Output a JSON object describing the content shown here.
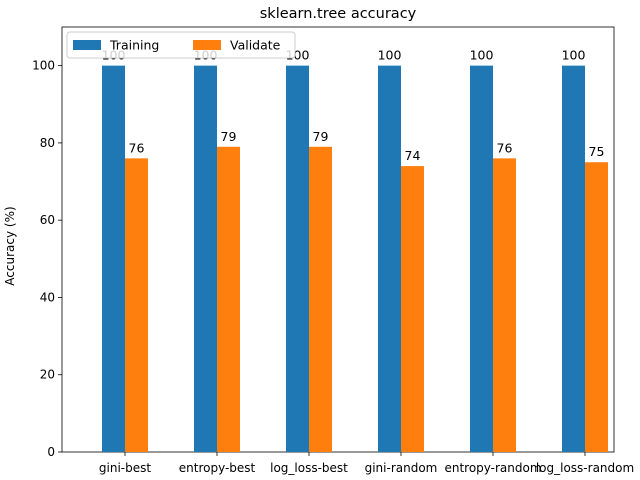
{
  "chart_data": {
    "type": "bar",
    "title": "sklearn.tree accuracy",
    "xlabel": "",
    "ylabel": "Accuracy (%)",
    "categories": [
      "gini-best",
      "entropy-best",
      "log_loss-best",
      "gini-random",
      "entropy-random",
      "log_loss-random"
    ],
    "series": [
      {
        "name": "Training",
        "color": "#1f77b4",
        "values": [
          100,
          100,
          100,
          100,
          100,
          100
        ]
      },
      {
        "name": "Validate",
        "color": "#ff7f0e",
        "values": [
          76,
          79,
          79,
          74,
          76,
          75
        ]
      }
    ],
    "ylim": [
      0,
      110
    ],
    "yticks": [
      0,
      20,
      40,
      60,
      80,
      100
    ],
    "grid": false,
    "legend_position": "top-left"
  }
}
